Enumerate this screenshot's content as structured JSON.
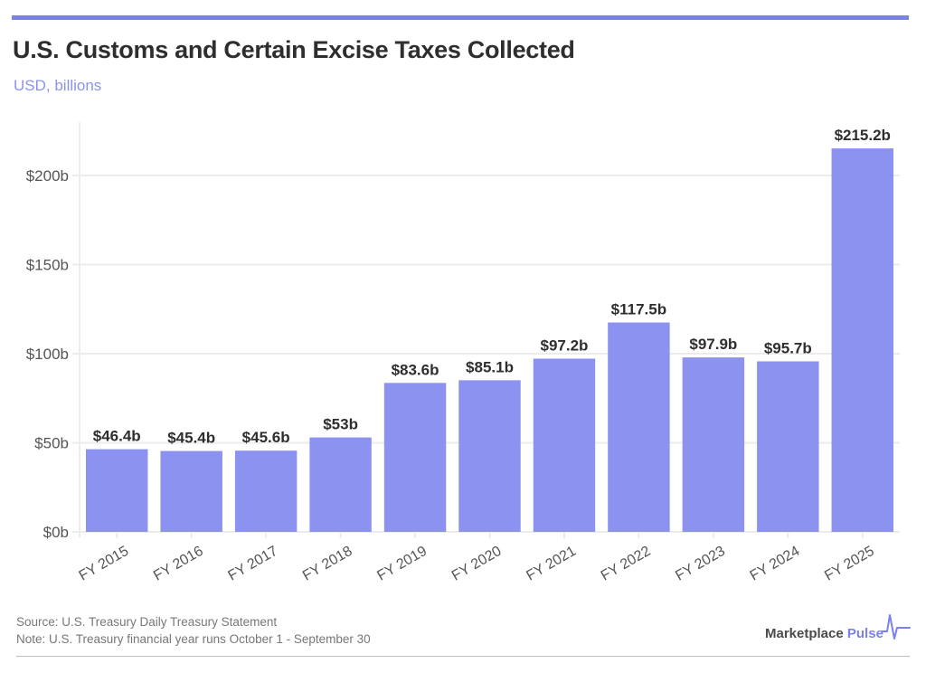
{
  "header": {
    "title": "U.S. Customs and Certain Excise Taxes Collected",
    "subtitle": "USD, billions"
  },
  "footer": {
    "source": "Source: U.S. Treasury Daily Treasury Statement",
    "note": "Note: U.S. Treasury financial year runs October 1 - September 30"
  },
  "brand": {
    "name_part1": "Marketplace",
    "name_part2": "Pulse",
    "icon": "pulse-icon"
  },
  "colors": {
    "bar": "#8b92f0",
    "accent": "#7b80ee",
    "label": "#2e2e2e",
    "grid": "#ececec",
    "axis_text": "#555555"
  },
  "chart_data": {
    "type": "bar",
    "title": "U.S. Customs and Certain Excise Taxes Collected",
    "subtitle": "USD, billions",
    "xlabel": "",
    "ylabel": "",
    "categories": [
      "FY 2015",
      "FY 2016",
      "FY 2017",
      "FY 2018",
      "FY 2019",
      "FY 2020",
      "FY 2021",
      "FY 2022",
      "FY 2023",
      "FY 2024",
      "FY 2025"
    ],
    "values": [
      46.4,
      45.4,
      45.6,
      53,
      83.6,
      85.1,
      97.2,
      117.5,
      97.9,
      95.7,
      215.2
    ],
    "data_labels": [
      "$46.4b",
      "$45.4b",
      "$45.6b",
      "$53b",
      "$83.6b",
      "$85.1b",
      "$97.2b",
      "$117.5b",
      "$97.9b",
      "$95.7b",
      "$215.2b"
    ],
    "ylim": [
      0,
      230
    ],
    "yticks": [
      0,
      50,
      100,
      150,
      200
    ],
    "ytick_labels": [
      "$0b",
      "$50b",
      "$100b",
      "$150b",
      "$200b"
    ],
    "grid": true,
    "legend": "none"
  }
}
